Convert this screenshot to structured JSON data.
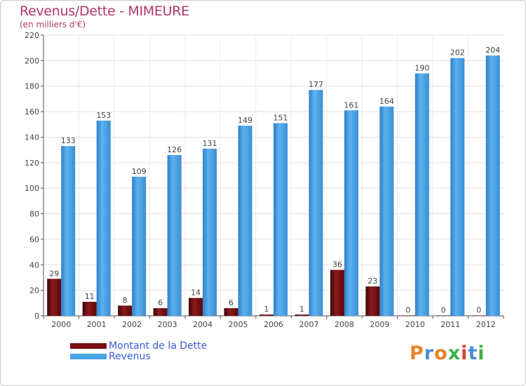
{
  "title": "Revenus/Dette - MIMEURE",
  "subtitle": "(en milliers d'€)",
  "brand": {
    "text": "Proxiti",
    "letter_colors": [
      "#e8852b",
      "#4a8fd6",
      "#e8852b",
      "#3fae49",
      "#e2412e",
      "#4a8fd6",
      "#3fae49"
    ]
  },
  "legend": [
    {
      "label": "Montant de la Dette",
      "color": "#7a0f12"
    },
    {
      "label": "Revenus",
      "color": "#4aa3e6"
    }
  ],
  "chart_data": {
    "type": "bar",
    "categories": [
      "2000",
      "2001",
      "2002",
      "2003",
      "2004",
      "2005",
      "2006",
      "2007",
      "2008",
      "2009",
      "2010",
      "2011",
      "2012"
    ],
    "series": [
      {
        "name": "Montant de la Dette",
        "color": "#7a0f12",
        "values": [
          29,
          11,
          8,
          6,
          14,
          6,
          1,
          1,
          36,
          23,
          0,
          0,
          0
        ]
      },
      {
        "name": "Revenus",
        "color": "#4aa3e6",
        "values": [
          133,
          153,
          109,
          126,
          131,
          149,
          151,
          177,
          161,
          164,
          190,
          202,
          204
        ]
      }
    ],
    "yticks": [
      0,
      20,
      40,
      60,
      80,
      100,
      120,
      140,
      160,
      180,
      200,
      220
    ],
    "ylim": [
      0,
      220
    ],
    "grid": true,
    "legend_position": "bottom-left"
  }
}
